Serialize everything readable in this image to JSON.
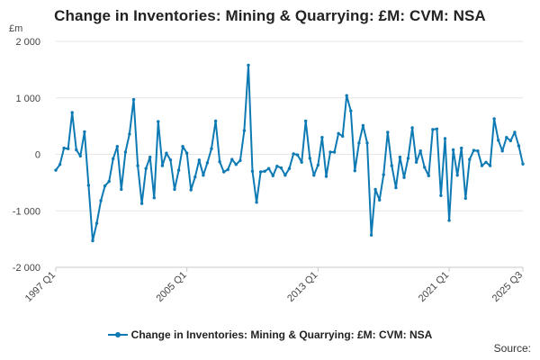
{
  "chart_data": {
    "type": "line",
    "title": "Change in Inventories: Mining & Quarrying: £M: CVM: NSA",
    "ylabel": "£m",
    "ylim": [
      -2000,
      2000
    ],
    "yticks": [
      2000,
      1000,
      0,
      -1000,
      -2000
    ],
    "ytick_labels": [
      "2 000",
      "1 000",
      "0",
      "-1 000",
      "-2 000"
    ],
    "xticks": [
      "1997 Q1",
      "2005 Q1",
      "2013 Q1",
      "2021 Q1",
      "2025 Q3"
    ],
    "x_start": "1997 Q1",
    "x_end": "2025 Q3",
    "grid": true,
    "legend_position": "bottom",
    "series": [
      {
        "name": "Change in Inventories: Mining & Quarrying: £M: CVM: NSA",
        "color": "#0e7ab4",
        "values": [
          -280,
          -180,
          110,
          100,
          740,
          80,
          -30,
          400,
          -550,
          -1530,
          -1220,
          -820,
          -560,
          -480,
          -80,
          140,
          -620,
          40,
          360,
          970,
          -200,
          -870,
          -250,
          -50,
          -770,
          580,
          -200,
          20,
          -100,
          -620,
          -280,
          140,
          20,
          -630,
          -400,
          -100,
          -370,
          -150,
          100,
          590,
          -130,
          -310,
          -270,
          -90,
          -180,
          -110,
          420,
          1580,
          -300,
          -850,
          -310,
          -300,
          -250,
          -380,
          -210,
          -240,
          -370,
          -250,
          10,
          -10,
          -140,
          590,
          -70,
          -370,
          -190,
          300,
          -390,
          40,
          40,
          370,
          320,
          1040,
          770,
          -290,
          200,
          510,
          200,
          -1430,
          -620,
          -810,
          -360,
          390,
          -200,
          -590,
          -50,
          -410,
          -70,
          470,
          -140,
          60,
          -230,
          -380,
          440,
          450,
          -730,
          280,
          -1170,
          80,
          -370,
          110,
          -780,
          -90,
          70,
          60,
          -200,
          -140,
          -200,
          630,
          250,
          60,
          300,
          240,
          390,
          150,
          -170
        ]
      }
    ]
  },
  "legend": {
    "label": "Change in Inventories: Mining & Quarrying: £M: CVM: NSA"
  },
  "source_label": "Source:"
}
